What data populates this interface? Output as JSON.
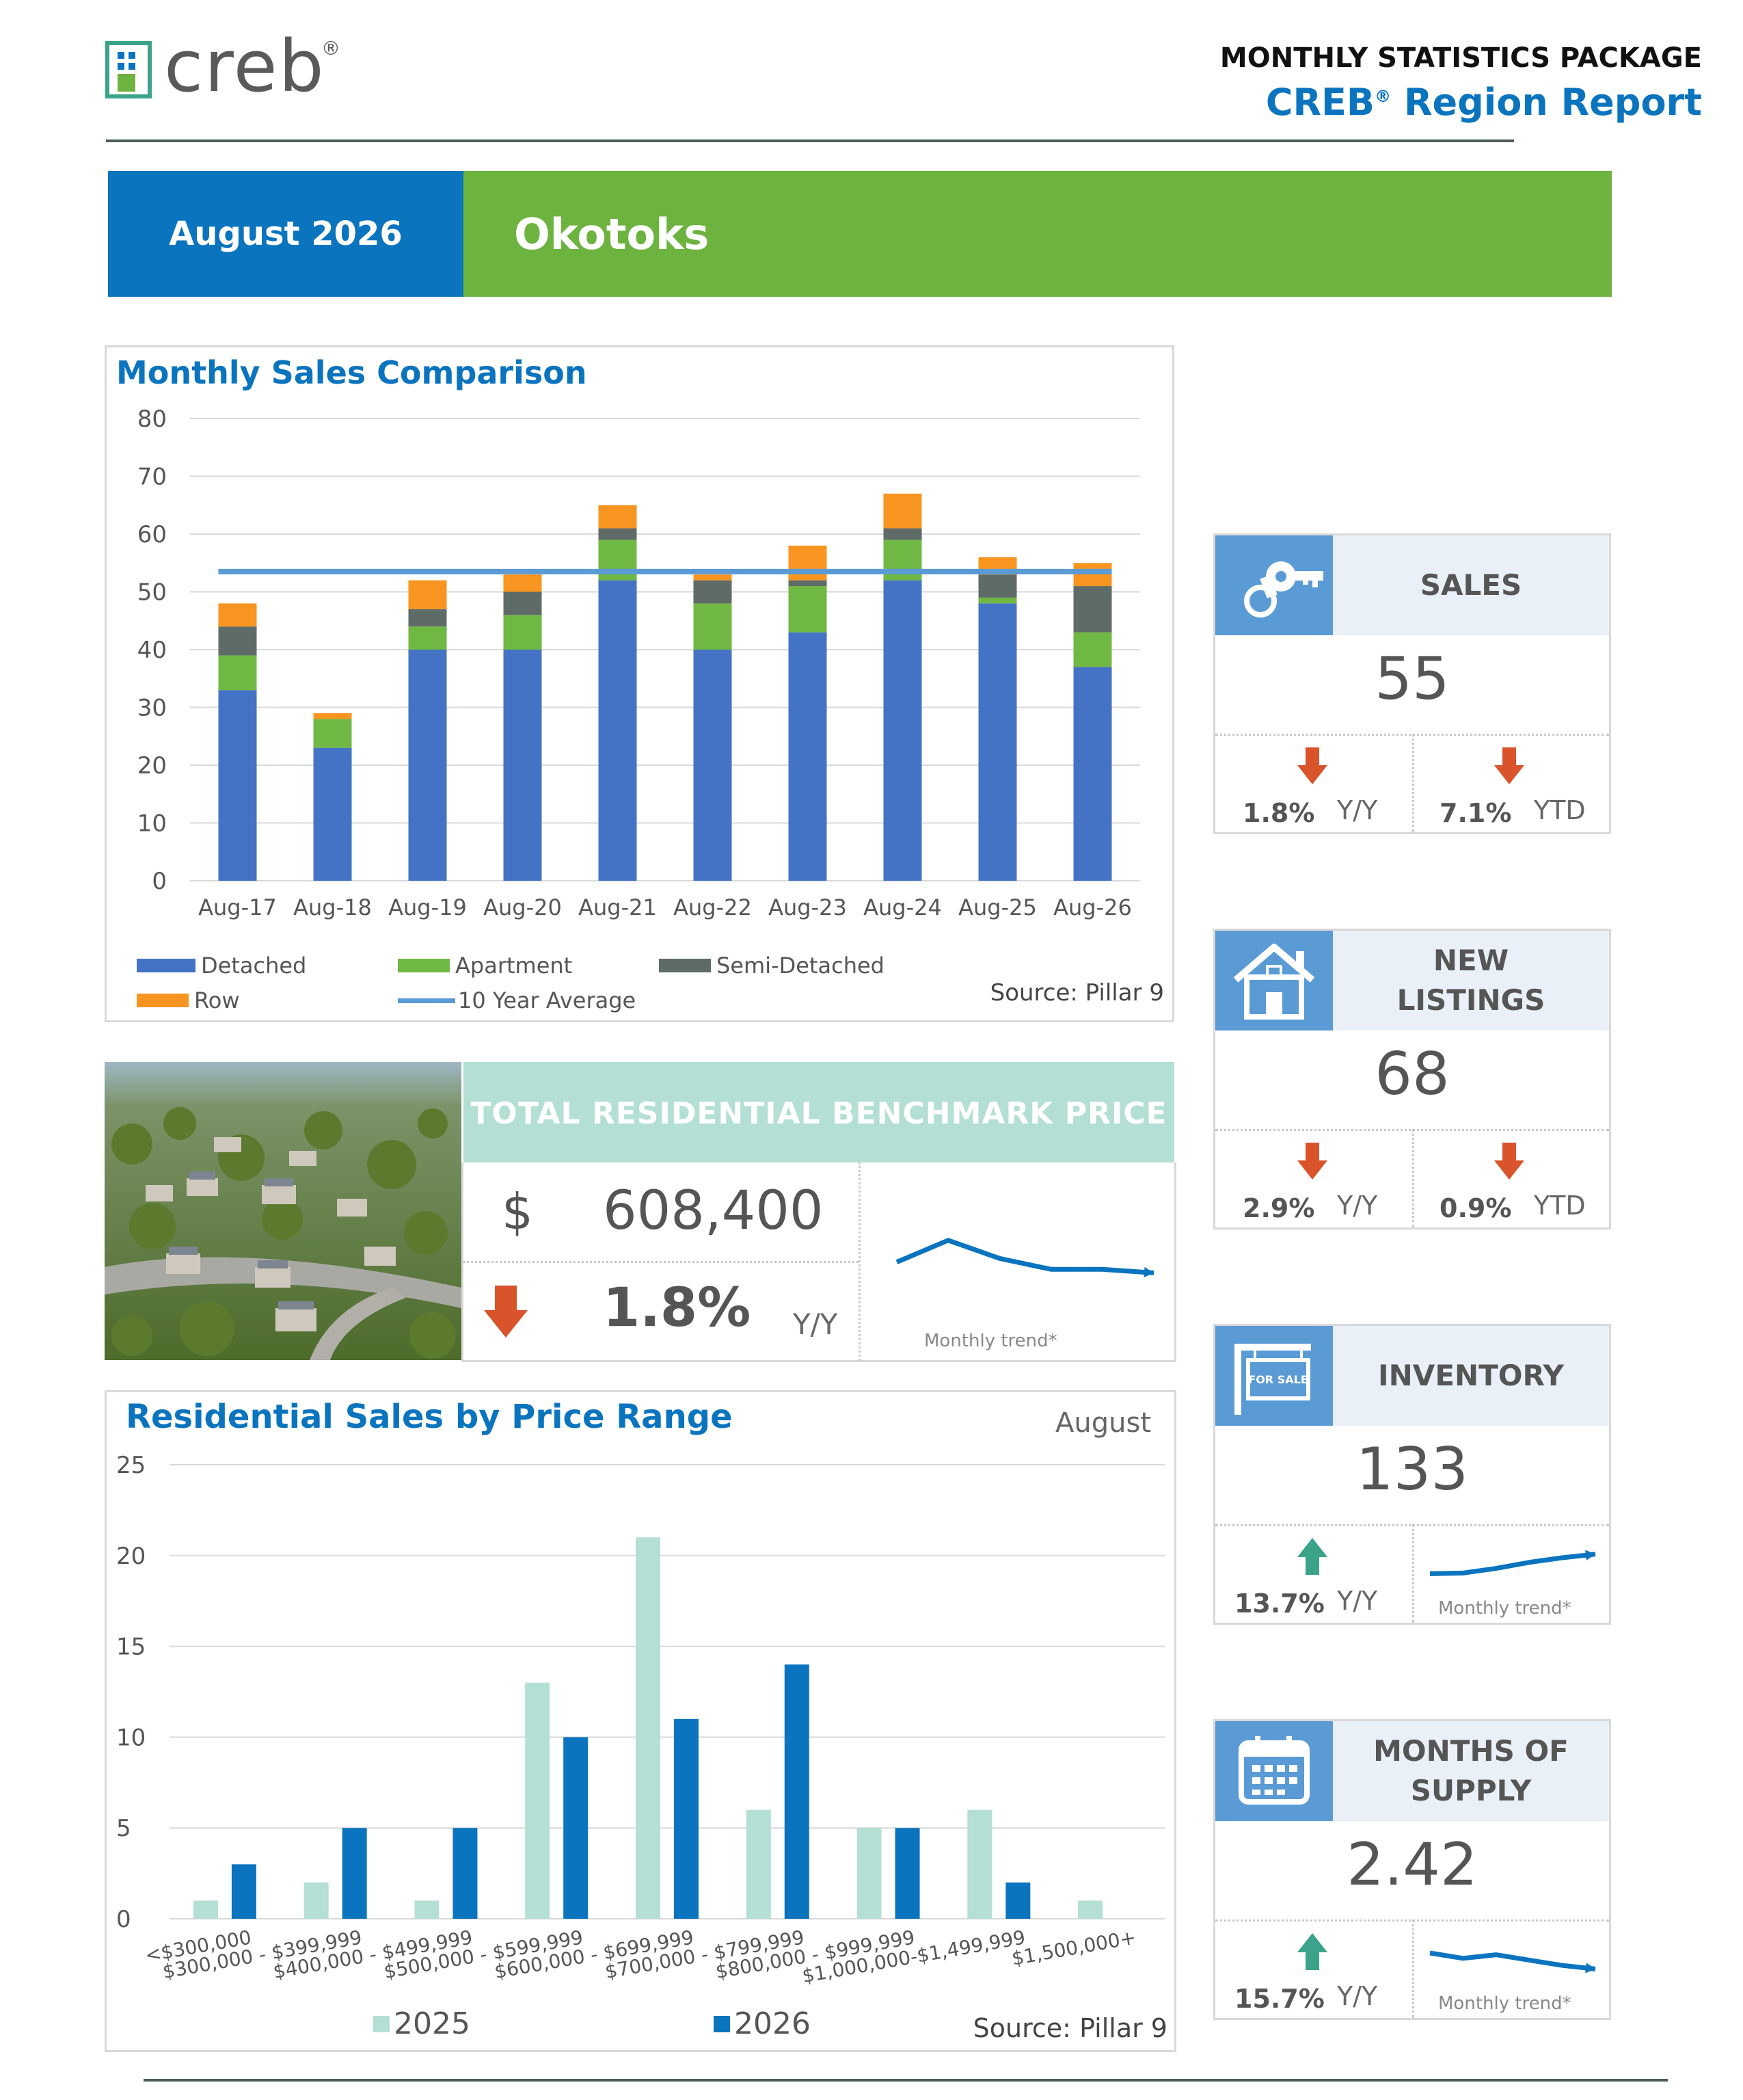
{
  "header": {
    "logo_text": "creb",
    "logo_mark": "®",
    "package_title": "MONTHLY STATISTICS PACKAGE",
    "report_title": "CREB",
    "report_mark": "®",
    "report_title_rest": " Region Report"
  },
  "band": {
    "date": "August 2026",
    "region": "Okotoks"
  },
  "monthly_sales": {
    "title": "Monthly Sales Comparison",
    "source": "Source: Pillar 9",
    "legend": {
      "detached": "Detached",
      "apartment": "Apartment",
      "semi": "Semi-Detached",
      "row": "Row",
      "avg": "10 Year Average"
    },
    "colors": {
      "detached": "#4472c4",
      "apartment": "#70b844",
      "semi": "#5f6b66",
      "row": "#f79520",
      "avg": "#5b9bd5"
    }
  },
  "benchmark": {
    "title": "TOTAL RESIDENTIAL BENCHMARK PRICE",
    "currency": "$",
    "price": "608,400",
    "change": "1.8%",
    "unit": "Y/Y",
    "trend_label": "Monthly trend*",
    "trend_values": [
      0.4,
      0.7,
      0.45,
      0.3,
      0.3,
      0.25
    ]
  },
  "price_range": {
    "title": "Residential Sales by Price Range",
    "month": "August",
    "source": "Source: Pillar 9",
    "legend_2025": "2025",
    "legend_2026": "2026",
    "colors": {
      "y2025": "#b3dfd4",
      "y2026": "#0a74bf"
    }
  },
  "stats": {
    "sales": {
      "label": "SALES",
      "value": "55",
      "yy": "1.8%",
      "yy_unit": "Y/Y",
      "ytd": "7.1%",
      "ytd_unit": "YTD",
      "icon": "keys-icon"
    },
    "new_listings": {
      "label_line1": "NEW",
      "label_line2": "LISTINGS",
      "value": "68",
      "yy": "2.9%",
      "yy_unit": "Y/Y",
      "ytd": "0.9%",
      "ytd_unit": "YTD",
      "icon": "house-icon"
    },
    "inventory": {
      "label": "INVENTORY",
      "value": "133",
      "yy": "13.7%",
      "yy_unit": "Y/Y",
      "trend_label": "Monthly trend*",
      "trend_values": [
        0.3,
        0.32,
        0.45,
        0.62,
        0.75,
        0.85
      ],
      "icon": "for-sale-sign-icon",
      "sign_text": "FOR SALE"
    },
    "months_supply": {
      "label_line1": "MONTHS OF",
      "label_line2": "SUPPLY",
      "value": "2.42",
      "yy": "15.7%",
      "yy_unit": "Y/Y",
      "trend_label": "Monthly trend*",
      "trend_values": [
        0.75,
        0.6,
        0.7,
        0.55,
        0.4,
        0.3
      ],
      "icon": "calendar-icon"
    }
  },
  "chart_data": [
    {
      "type": "bar",
      "stacked": true,
      "title": "Monthly Sales Comparison",
      "categories": [
        "Aug-17",
        "Aug-18",
        "Aug-19",
        "Aug-20",
        "Aug-21",
        "Aug-22",
        "Aug-23",
        "Aug-24",
        "Aug-25",
        "Aug-26"
      ],
      "series": [
        {
          "name": "Detached",
          "values": [
            33,
            23,
            40,
            40,
            52,
            40,
            43,
            52,
            48,
            37
          ]
        },
        {
          "name": "Apartment",
          "values": [
            6,
            5,
            4,
            6,
            7,
            8,
            8,
            7,
            1,
            6
          ]
        },
        {
          "name": "Semi-Detached",
          "values": [
            5,
            0,
            3,
            4,
            2,
            4,
            1,
            2,
            4,
            8
          ]
        },
        {
          "name": "Row",
          "values": [
            4,
            1,
            5,
            3,
            4,
            1,
            6,
            6,
            3,
            4
          ]
        }
      ],
      "line": {
        "name": "10 Year Average",
        "value": 53.5
      },
      "yticks": [
        "0",
        "10",
        "20",
        "30",
        "40",
        "50",
        "60",
        "70",
        "80"
      ],
      "ylim": [
        0,
        80
      ],
      "grid": true,
      "legend": "bottom"
    },
    {
      "type": "bar",
      "title": "Residential Sales by Price Range",
      "categories": [
        "<$300,000",
        "$300,000 - $399,999",
        "$400,000 - $499,999",
        "$500,000 - $599,999",
        "$600,000 - $699,999",
        "$700,000 - $799,999",
        "$800,000 - $999,999",
        "$1,000,000-$1,499,999",
        "$1,500,000+"
      ],
      "series": [
        {
          "name": "2025",
          "values": [
            1,
            2,
            1,
            13,
            21,
            6,
            5,
            6,
            1
          ]
        },
        {
          "name": "2026",
          "values": [
            3,
            5,
            5,
            10,
            11,
            14,
            5,
            2,
            0
          ]
        }
      ],
      "yticks": [
        "0",
        "5",
        "10",
        "15",
        "20",
        "25"
      ],
      "ylim": [
        0,
        25
      ],
      "grid": true,
      "legend": "bottom"
    }
  ]
}
